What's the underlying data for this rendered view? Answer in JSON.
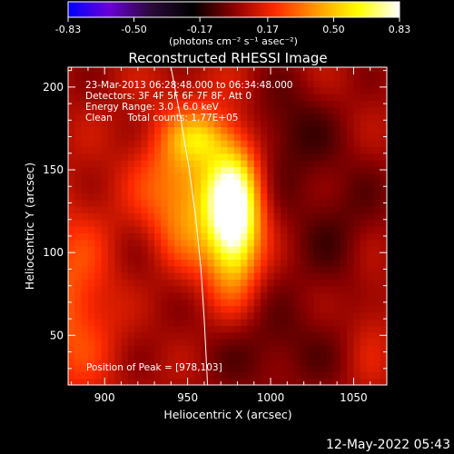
{
  "chart_data": {
    "type": "heatmap",
    "title": "Reconstructed RHESSI Image",
    "xlabel": "Heliocentric X (arcsec)",
    "ylabel": "Heliocentric Y (arcsec)",
    "xlim": [
      878,
      1070
    ],
    "ylim": [
      20,
      212
    ],
    "x_ticks": [
      900,
      950,
      1000,
      1050
    ],
    "y_ticks": [
      50,
      100,
      150,
      200
    ],
    "colorbar": {
      "min": -0.83,
      "max": 0.83,
      "ticks": [
        "-0.83",
        "-0.50",
        "-0.17",
        "0.17",
        "0.50",
        "0.83"
      ],
      "unit_label": "(photons cm⁻² s⁻¹ asec⁻²)",
      "colors": [
        "#0000ff",
        "#6a00d6",
        "#2a0a3a",
        "#000000",
        "#8b0000",
        "#ff2a00",
        "#ff9900",
        "#ffff00",
        "#ffffff"
      ]
    },
    "info_lines": [
      "23-Mar-2013 06:28:48.000 to 06:34:48.000",
      "Detectors: 3F 4F 5F 6F 7F 8F, Att 0",
      "Energy Range: 3.0 - 6.0 keV",
      "Clean     Total counts: 1.77E+05"
    ],
    "peak_label": "Position of Peak = [978,103]",
    "peak": [
      978,
      103
    ],
    "limb_curve": [
      [
        940,
        212
      ],
      [
        946,
        180
      ],
      [
        951,
        150
      ],
      [
        955,
        120
      ],
      [
        958,
        90
      ],
      [
        960,
        60
      ],
      [
        962,
        20
      ]
    ],
    "sources": [
      {
        "x": 978,
        "y": 122,
        "sx": 11,
        "sy": 28,
        "amp": 0.85
      },
      {
        "x": 950,
        "y": 135,
        "sx": 20,
        "sy": 35,
        "amp": 0.42
      },
      {
        "x": 958,
        "y": 170,
        "sx": 12,
        "sy": 10,
        "amp": 0.25
      },
      {
        "x": 880,
        "y": 70,
        "sx": 20,
        "sy": 40,
        "amp": 0.25
      },
      {
        "x": 1010,
        "y": 175,
        "sx": 18,
        "sy": 20,
        "amp": -0.15
      },
      {
        "x": 1040,
        "y": 115,
        "sx": 25,
        "sy": 35,
        "amp": -0.12
      },
      {
        "x": 930,
        "y": 90,
        "sx": 20,
        "sy": 25,
        "amp": -0.1
      },
      {
        "x": 1000,
        "y": 40,
        "sx": 30,
        "sy": 20,
        "amp": -0.12
      },
      {
        "x": 1060,
        "y": 60,
        "sx": 10,
        "sy": 30,
        "amp": 0.1
      }
    ]
  },
  "footer": {
    "timestamp": "12-May-2022 05:43"
  }
}
